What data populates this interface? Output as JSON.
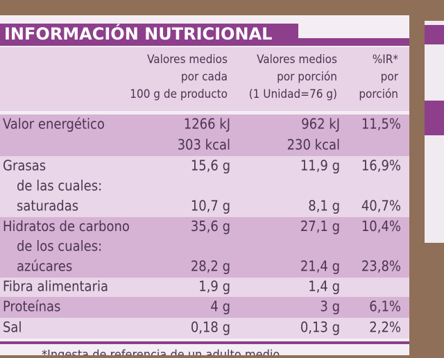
{
  "label": {
    "title": "INFORMACIÓN NUTRICIONAL",
    "header": {
      "per100": [
        "Valores medios",
        "por cada",
        "100 g de producto"
      ],
      "portion": [
        "Valores medios",
        "por porción",
        "(1 Unidad=76 g)"
      ],
      "ir": [
        "%IR*",
        "por",
        "porción"
      ]
    },
    "rows": [
      {
        "name": "Valor energético",
        "per100": "1266 kJ",
        "portion": "962 kJ",
        "ir": "11,5%"
      },
      {
        "per100": "303 kcal",
        "portion": "230 kcal"
      },
      {
        "name": "Grasas",
        "per100": "15,6 g",
        "portion": "11,9 g",
        "ir": "16,9%"
      },
      {
        "name": "de las cuales:"
      },
      {
        "name": "saturadas",
        "per100": "10,7 g",
        "portion": "8,1 g",
        "ir": "40,7%"
      },
      {
        "name": "Hidratos de carbono",
        "per100": "35,6 g",
        "portion": "27,1 g",
        "ir": "10,4%"
      },
      {
        "name": "de los cuales:"
      },
      {
        "name": "azúcares",
        "per100": "28,2 g",
        "portion": "21,4 g",
        "ir": "23,8%"
      },
      {
        "name": "Fibra alimentaria",
        "per100": "1,9 g",
        "portion": "1,4 g"
      },
      {
        "name": "Proteínas",
        "per100": "4 g",
        "portion": "3 g",
        "ir": "6,1%"
      },
      {
        "name": "Sal",
        "per100": "0,18 g",
        "portion": "0,13 g",
        "ir": "2,2%"
      }
    ],
    "footnote": "*Ingesta de referencia de un adulto medio"
  }
}
